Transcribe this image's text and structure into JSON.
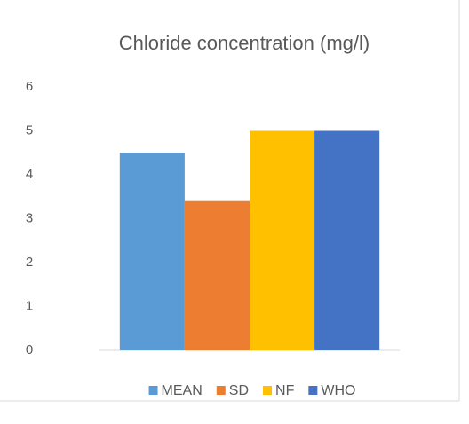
{
  "chart_data": {
    "type": "bar",
    "title": "Chloride concentration (mg/l)",
    "categories": [
      null
    ],
    "series": [
      {
        "name": "MEAN",
        "color": "#5b9bd5",
        "values": [
          4.5
        ]
      },
      {
        "name": "SD",
        "color": "#ed7d31",
        "values": [
          3.4
        ]
      },
      {
        "name": "NF",
        "color": "#ffc000",
        "values": [
          5
        ]
      },
      {
        "name": "WHO",
        "color": "#4472c4",
        "values": [
          5
        ]
      }
    ],
    "ylim": [
      0,
      6
    ],
    "yticks": [
      0,
      1,
      2,
      3,
      4,
      5,
      6
    ],
    "grid": false,
    "legend": "bottom"
  }
}
